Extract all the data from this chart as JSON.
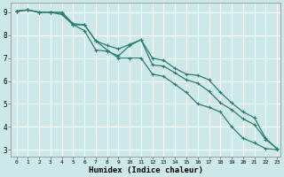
{
  "xlabel": "Humidex (Indice chaleur)",
  "bg_color": "#cce8e8",
  "grid_color": "#ffffff",
  "line_color": "#2a7d6f",
  "xlim": [
    -0.5,
    23.3
  ],
  "ylim": [
    2.7,
    9.4
  ],
  "yticks": [
    3,
    4,
    5,
    6,
    7,
    8,
    9
  ],
  "xticks": [
    0,
    1,
    2,
    3,
    4,
    5,
    6,
    7,
    8,
    9,
    10,
    11,
    12,
    13,
    14,
    15,
    16,
    17,
    18,
    19,
    20,
    21,
    22,
    23
  ],
  "line1_x": [
    0,
    1,
    2,
    3,
    4,
    5,
    6,
    7,
    8,
    9,
    10,
    11,
    12,
    13,
    14,
    15,
    16,
    17,
    18,
    19,
    20,
    21,
    22,
    23
  ],
  "line1_y": [
    9.05,
    9.1,
    9.0,
    9.0,
    8.95,
    8.45,
    8.45,
    7.75,
    7.55,
    7.4,
    7.6,
    7.8,
    7.0,
    6.9,
    6.55,
    6.3,
    6.25,
    6.05,
    5.5,
    5.05,
    4.65,
    4.4,
    3.5,
    3.05
  ],
  "line2_x": [
    0,
    1,
    2,
    3,
    4,
    5,
    6,
    7,
    8,
    9,
    10,
    11,
    12,
    13,
    14,
    15,
    16,
    17,
    18,
    19,
    20,
    21,
    22,
    23
  ],
  "line2_y": [
    9.05,
    9.1,
    9.0,
    9.0,
    8.9,
    8.45,
    8.2,
    7.35,
    7.3,
    7.1,
    7.55,
    7.8,
    6.7,
    6.65,
    6.35,
    6.05,
    5.9,
    5.55,
    5.05,
    4.75,
    4.35,
    4.1,
    3.45,
    3.05
  ],
  "line3_x": [
    0,
    1,
    2,
    3,
    4,
    5,
    6,
    7,
    8,
    9,
    10,
    11,
    12,
    13,
    14,
    15,
    16,
    17,
    18,
    19,
    20,
    21,
    22,
    23
  ],
  "line3_y": [
    9.05,
    9.1,
    9.0,
    9.0,
    9.0,
    8.5,
    8.45,
    7.75,
    7.35,
    7.0,
    7.0,
    7.0,
    6.3,
    6.2,
    5.85,
    5.5,
    5.0,
    4.85,
    4.65,
    4.0,
    3.5,
    3.3,
    3.05,
    3.0
  ]
}
